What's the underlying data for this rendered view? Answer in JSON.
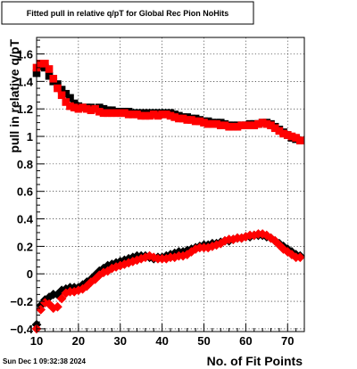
{
  "chart_data": {
    "type": "scatter",
    "title": "Fitted pull in relative q/pT for Global Rec Pion NoHits",
    "xlabel": "No. of Fit Points",
    "ylabel": "pull in relative q/pT",
    "xlim": [
      10,
      74
    ],
    "ylim": [
      -0.42,
      1.72
    ],
    "x_ticks": [
      "10",
      "20",
      "30",
      "40",
      "50",
      "60",
      "70"
    ],
    "y_ticks": [
      "−0.4",
      "−0.2",
      "0",
      "0.2",
      "0.4",
      "0.6",
      "0.8",
      "1",
      "1.2",
      "1.4",
      "1.6"
    ],
    "x_tick_values": [
      10,
      20,
      30,
      40,
      50,
      60,
      70
    ],
    "y_tick_values": [
      -0.4,
      -0.2,
      0,
      0.2,
      0.4,
      0.6,
      0.8,
      1.0,
      1.2,
      1.4,
      1.6
    ],
    "grid": true,
    "series": [
      {
        "color": "#000000",
        "marker": "square",
        "x": [
          10,
          11,
          12,
          13,
          14,
          15,
          16,
          17,
          18,
          19,
          20,
          21,
          22,
          23,
          24,
          25,
          26,
          27,
          28,
          29,
          30,
          31,
          32,
          33,
          34,
          35,
          36,
          37,
          38,
          39,
          40,
          41,
          42,
          43,
          44,
          45,
          46,
          47,
          48,
          49,
          50,
          51,
          52,
          53,
          54,
          55,
          56,
          57,
          58,
          59,
          60,
          61,
          62,
          63,
          64,
          65,
          66,
          67,
          68,
          69,
          70,
          71,
          72,
          73
        ],
        "y": [
          1.46,
          1.51,
          1.5,
          1.44,
          1.4,
          1.38,
          1.34,
          1.31,
          1.28,
          1.24,
          1.22,
          1.21,
          1.21,
          1.21,
          1.2,
          1.21,
          1.2,
          1.19,
          1.19,
          1.18,
          1.18,
          1.18,
          1.18,
          1.17,
          1.17,
          1.17,
          1.17,
          1.17,
          1.17,
          1.17,
          1.17,
          1.17,
          1.17,
          1.16,
          1.15,
          1.14,
          1.14,
          1.13,
          1.13,
          1.12,
          1.11,
          1.11,
          1.1,
          1.1,
          1.1,
          1.09,
          1.08,
          1.08,
          1.08,
          1.08,
          1.08,
          1.09,
          1.09,
          1.09,
          1.1,
          1.1,
          1.09,
          1.07,
          1.05,
          1.03,
          1.01,
          0.99,
          0.98,
          0.97
        ]
      },
      {
        "color": "#000000",
        "marker": "diamond",
        "x": [
          10,
          11,
          12,
          13,
          14,
          15,
          16,
          17,
          18,
          19,
          20,
          21,
          22,
          23,
          24,
          25,
          26,
          27,
          28,
          29,
          30,
          31,
          32,
          33,
          34,
          35,
          36,
          37,
          38,
          39,
          40,
          41,
          42,
          43,
          44,
          45,
          46,
          47,
          48,
          49,
          50,
          51,
          52,
          53,
          54,
          55,
          56,
          57,
          58,
          59,
          60,
          61,
          62,
          63,
          64,
          65,
          66,
          67,
          68,
          69,
          70,
          71,
          72,
          73
        ],
        "y": [
          -0.37,
          -0.23,
          -0.19,
          -0.17,
          -0.15,
          -0.15,
          -0.12,
          -0.11,
          -0.1,
          -0.1,
          -0.1,
          -0.08,
          -0.06,
          -0.04,
          -0.01,
          0.02,
          0.04,
          0.06,
          0.07,
          0.08,
          0.09,
          0.1,
          0.11,
          0.12,
          0.13,
          0.13,
          0.13,
          0.12,
          0.11,
          0.12,
          0.12,
          0.13,
          0.14,
          0.15,
          0.16,
          0.16,
          0.17,
          0.18,
          0.19,
          0.2,
          0.21,
          0.21,
          0.22,
          0.22,
          0.23,
          0.24,
          0.24,
          0.25,
          0.26,
          0.26,
          0.27,
          0.27,
          0.28,
          0.28,
          0.28,
          0.27,
          0.26,
          0.24,
          0.22,
          0.2,
          0.18,
          0.16,
          0.14,
          0.13
        ]
      },
      {
        "color": "#ff0000",
        "marker": "square",
        "x": [
          10,
          11,
          12,
          13,
          14,
          15,
          16,
          17,
          18,
          19,
          20,
          21,
          22,
          23,
          24,
          25,
          26,
          27,
          28,
          29,
          30,
          31,
          32,
          33,
          34,
          35,
          36,
          37,
          38,
          39,
          40,
          41,
          42,
          43,
          44,
          45,
          46,
          47,
          48,
          49,
          50,
          51,
          52,
          53,
          54,
          55,
          56,
          57,
          58,
          59,
          60,
          61,
          62,
          63,
          64,
          65,
          66,
          67,
          68,
          69,
          70,
          71,
          72,
          73
        ],
        "y": [
          1.5,
          1.53,
          1.53,
          1.49,
          1.42,
          1.35,
          1.3,
          1.25,
          1.22,
          1.21,
          1.2,
          1.21,
          1.2,
          1.19,
          1.2,
          1.18,
          1.17,
          1.17,
          1.17,
          1.17,
          1.17,
          1.17,
          1.16,
          1.16,
          1.16,
          1.15,
          1.15,
          1.15,
          1.16,
          1.15,
          1.16,
          1.16,
          1.15,
          1.14,
          1.13,
          1.13,
          1.12,
          1.12,
          1.11,
          1.11,
          1.1,
          1.09,
          1.09,
          1.09,
          1.08,
          1.08,
          1.07,
          1.07,
          1.07,
          1.08,
          1.08,
          1.08,
          1.08,
          1.09,
          1.1,
          1.09,
          1.08,
          1.06,
          1.04,
          1.02,
          1.01,
          1.0,
          0.99,
          0.97
        ]
      },
      {
        "color": "#ff0000",
        "marker": "diamond",
        "x": [
          10,
          11,
          12,
          13,
          14,
          15,
          16,
          17,
          18,
          19,
          20,
          21,
          22,
          23,
          24,
          25,
          26,
          27,
          28,
          29,
          30,
          31,
          32,
          33,
          34,
          35,
          36,
          37,
          38,
          39,
          40,
          41,
          42,
          43,
          44,
          45,
          46,
          47,
          48,
          49,
          50,
          51,
          52,
          53,
          54,
          55,
          56,
          57,
          58,
          59,
          60,
          61,
          62,
          63,
          64,
          65,
          66,
          67,
          68,
          69,
          70,
          71,
          72,
          73
        ],
        "y": [
          -0.4,
          -0.26,
          -0.21,
          -0.22,
          -0.25,
          -0.24,
          -0.18,
          -0.14,
          -0.13,
          -0.13,
          -0.12,
          -0.11,
          -0.09,
          -0.06,
          -0.04,
          -0.01,
          0.01,
          0.02,
          0.04,
          0.05,
          0.06,
          0.07,
          0.08,
          0.09,
          0.1,
          0.11,
          0.12,
          0.13,
          0.12,
          0.11,
          0.11,
          0.11,
          0.12,
          0.12,
          0.13,
          0.13,
          0.14,
          0.16,
          0.18,
          0.19,
          0.19,
          0.19,
          0.2,
          0.21,
          0.22,
          0.24,
          0.25,
          0.25,
          0.26,
          0.26,
          0.27,
          0.28,
          0.28,
          0.29,
          0.29,
          0.28,
          0.26,
          0.24,
          0.21,
          0.18,
          0.16,
          0.14,
          0.12,
          0.12
        ]
      }
    ]
  },
  "footer": {
    "timestamp": "Sun Dec  1 09:32:38 2024"
  }
}
